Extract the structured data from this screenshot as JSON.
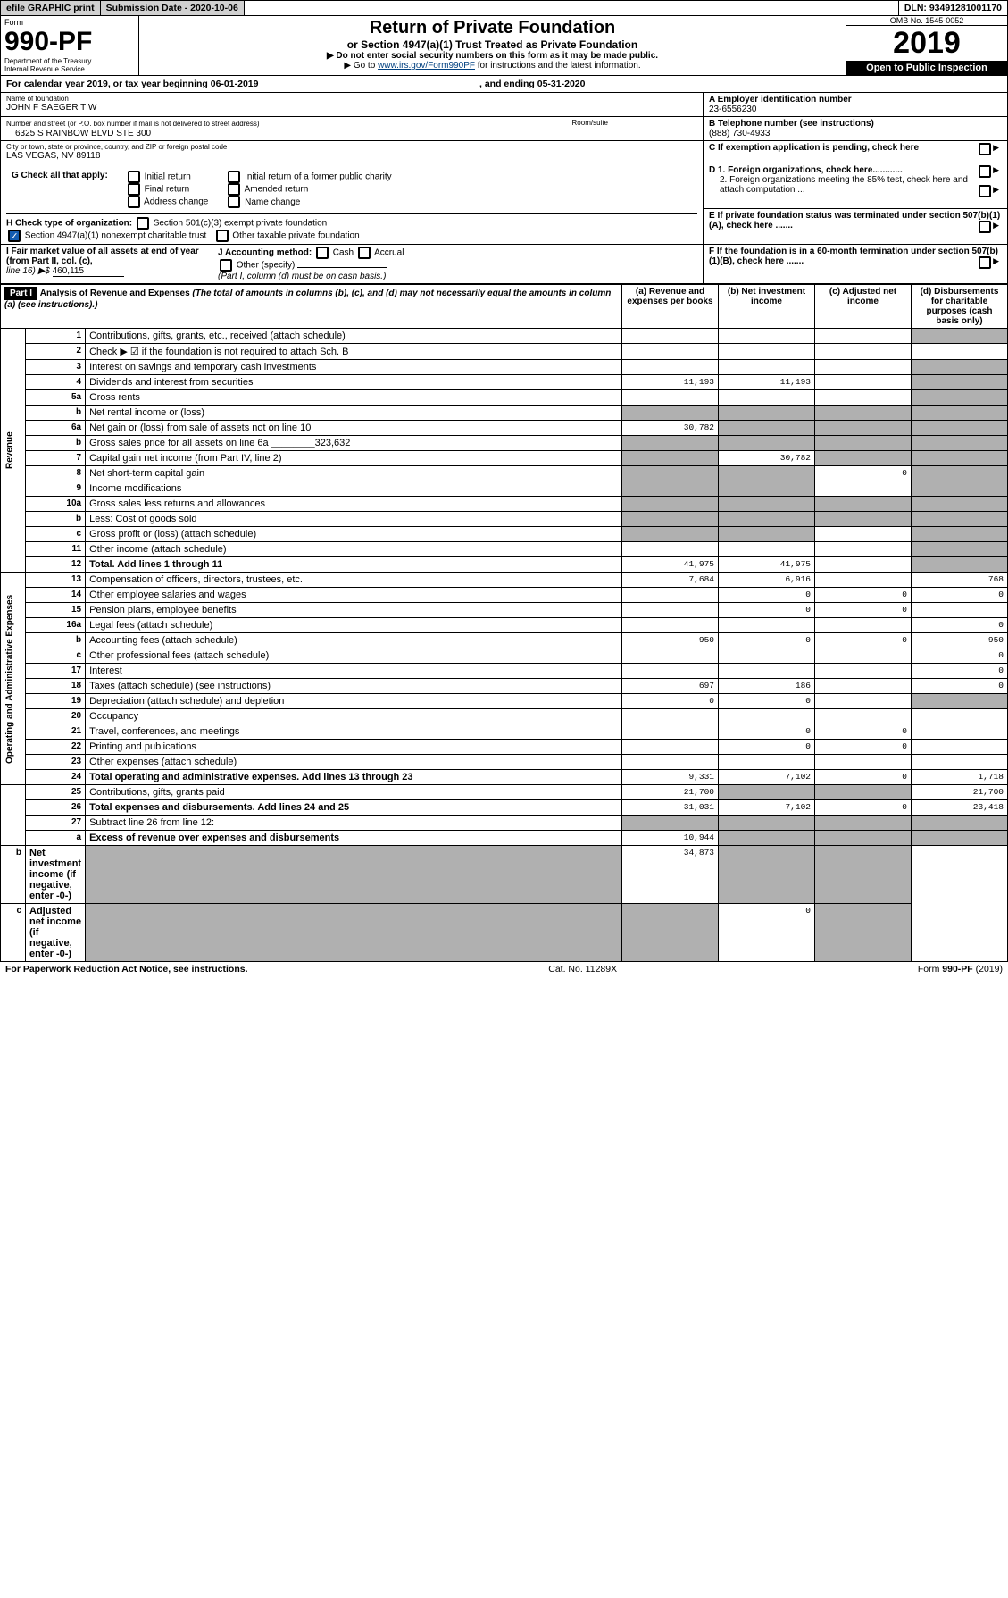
{
  "topbar": {
    "efile": "efile GRAPHIC print",
    "subdate_label": "Submission Date - 2020-10-06",
    "dln": "DLN: 93491281001170"
  },
  "header": {
    "form_word": "Form",
    "form_no": "990-PF",
    "dept": "Department of the Treasury\nInternal Revenue Service",
    "title": "Return of Private Foundation",
    "subtitle": "or Section 4947(a)(1) Trust Treated as Private Foundation",
    "warn": "▶ Do not enter social security numbers on this form as it may be made public.",
    "goto_pre": "▶ Go to ",
    "goto_link": "www.irs.gov/Form990PF",
    "goto_post": " for instructions and the latest information.",
    "omb": "OMB No. 1545-0052",
    "year": "2019",
    "open": "Open to Public Inspection"
  },
  "cy": {
    "text1": "For calendar year 2019, or tax year beginning 06-01-2019",
    "text2": ", and ending 05-31-2020"
  },
  "info": {
    "name_label": "Name of foundation",
    "name": "JOHN F SAEGER T W",
    "ein_label": "A Employer identification number",
    "ein": "23-6556230",
    "addr_label": "Number and street (or P.O. box number if mail is not delivered to street address)",
    "addr": "6325 S RAINBOW BLVD STE 300",
    "room_label": "Room/suite",
    "tel_label": "B Telephone number (see instructions)",
    "tel": "(888) 730-4933",
    "city_label": "City or town, state or province, country, and ZIP or foreign postal code",
    "city": "LAS VEGAS, NV  89118",
    "c": "C If exemption application is pending, check here",
    "d1": "D 1. Foreign organizations, check here............",
    "d2": "2. Foreign organizations meeting the 85% test, check here and attach computation ...",
    "e": "E  If private foundation status was terminated under section 507(b)(1)(A), check here .......",
    "f": "F  If the foundation is in a 60-month termination under section 507(b)(1)(B), check here .......",
    "g_label": "G Check all that apply:",
    "g_opts": [
      "Initial return",
      "Final return",
      "Address change",
      "Initial return of a former public charity",
      "Amended return",
      "Name change"
    ],
    "h_label": "H Check type of organization:",
    "h_opt1": "Section 501(c)(3) exempt private foundation",
    "h_opt2": "Section 4947(a)(1) nonexempt charitable trust",
    "h_opt3": "Other taxable private foundation",
    "i_label": "I Fair market value of all assets at end of year (from Part II, col. (c),",
    "i_line16": "line 16) ▶$",
    "i_value": "460,115",
    "j_label": "J Accounting method:",
    "j_cash": "Cash",
    "j_accrual": "Accrual",
    "j_other": "Other (specify)",
    "j_note": "(Part I, column (d) must be on cash basis.)"
  },
  "part1": {
    "label": "Part I",
    "title": "Analysis of Revenue and Expenses",
    "note": "(The total of amounts in columns (b), (c), and (d) may not necessarily equal the amounts in column (a) (see instructions).)",
    "col_a": "(a)    Revenue and expenses per books",
    "col_b": "(b)   Net investment income",
    "col_c": "(c)   Adjusted net income",
    "col_d": "(d)   Disbursements for charitable purposes (cash basis only)"
  },
  "revenue_label": "Revenue",
  "expense_label": "Operating and Administrative Expenses",
  "rows": [
    {
      "ln": "1",
      "desc": "Contributions, gifts, grants, etc., received (attach schedule)",
      "a": "",
      "b": "",
      "c": "",
      "d": "s"
    },
    {
      "ln": "2",
      "desc": "Check ▶ ☑ if the foundation is not required to attach Sch. B",
      "ad": "s",
      "bd": "s",
      "cd": "s",
      "dd": "s"
    },
    {
      "ln": "3",
      "desc": "Interest on savings and temporary cash investments",
      "a": "",
      "b": "",
      "c": "",
      "d": "s"
    },
    {
      "ln": "4",
      "desc": "Dividends and interest from securities",
      "a": "11,193",
      "b": "11,193",
      "c": "",
      "d": "s"
    },
    {
      "ln": "5a",
      "desc": "Gross rents",
      "a": "",
      "b": "",
      "c": "",
      "d": "s"
    },
    {
      "ln": "b",
      "desc": "Net rental income or (loss)",
      "a": "s",
      "b": "s",
      "c": "s",
      "d": "s"
    },
    {
      "ln": "6a",
      "desc": "Net gain or (loss) from sale of assets not on line 10",
      "a": "30,782",
      "b": "s",
      "c": "s",
      "d": "s"
    },
    {
      "ln": "b",
      "desc": "Gross sales price for all assets on line 6a ________323,632",
      "a": "s",
      "b": "s",
      "c": "s",
      "d": "s"
    },
    {
      "ln": "7",
      "desc": "Capital gain net income (from Part IV, line 2)",
      "a": "s",
      "b": "30,782",
      "c": "s",
      "d": "s"
    },
    {
      "ln": "8",
      "desc": "Net short-term capital gain",
      "a": "s",
      "b": "s",
      "c": "0",
      "d": "s"
    },
    {
      "ln": "9",
      "desc": "Income modifications",
      "a": "s",
      "b": "s",
      "c": "",
      "d": "s"
    },
    {
      "ln": "10a",
      "desc": "Gross sales less returns and allowances",
      "a": "s",
      "b": "s",
      "c": "s",
      "d": "s"
    },
    {
      "ln": "b",
      "desc": "Less: Cost of goods sold",
      "a": "s",
      "b": "s",
      "c": "s",
      "d": "s"
    },
    {
      "ln": "c",
      "desc": "Gross profit or (loss) (attach schedule)",
      "a": "s",
      "b": "s",
      "c": "",
      "d": "s"
    },
    {
      "ln": "11",
      "desc": "Other income (attach schedule)",
      "a": "",
      "b": "",
      "c": "",
      "d": "s"
    },
    {
      "ln": "12",
      "desc": "Total. Add lines 1 through 11",
      "bold": true,
      "a": "41,975",
      "b": "41,975",
      "c": "",
      "d": "s"
    },
    {
      "ln": "13",
      "desc": "Compensation of officers, directors, trustees, etc.",
      "a": "7,684",
      "b": "6,916",
      "c": "",
      "d": "768"
    },
    {
      "ln": "14",
      "desc": "Other employee salaries and wages",
      "a": "",
      "b": "0",
      "c": "0",
      "d": "0"
    },
    {
      "ln": "15",
      "desc": "Pension plans, employee benefits",
      "a": "",
      "b": "0",
      "c": "0",
      "d": ""
    },
    {
      "ln": "16a",
      "desc": "Legal fees (attach schedule)",
      "a": "",
      "b": "",
      "c": "",
      "d": "0"
    },
    {
      "ln": "b",
      "desc": "Accounting fees (attach schedule)",
      "a": "950",
      "b": "0",
      "c": "0",
      "d": "950"
    },
    {
      "ln": "c",
      "desc": "Other professional fees (attach schedule)",
      "a": "",
      "b": "",
      "c": "",
      "d": "0"
    },
    {
      "ln": "17",
      "desc": "Interest",
      "a": "",
      "b": "",
      "c": "",
      "d": "0"
    },
    {
      "ln": "18",
      "desc": "Taxes (attach schedule) (see instructions)",
      "a": "697",
      "b": "186",
      "c": "",
      "d": "0"
    },
    {
      "ln": "19",
      "desc": "Depreciation (attach schedule) and depletion",
      "a": "0",
      "b": "0",
      "c": "",
      "d": "s"
    },
    {
      "ln": "20",
      "desc": "Occupancy",
      "a": "",
      "b": "",
      "c": "",
      "d": ""
    },
    {
      "ln": "21",
      "desc": "Travel, conferences, and meetings",
      "a": "",
      "b": "0",
      "c": "0",
      "d": ""
    },
    {
      "ln": "22",
      "desc": "Printing and publications",
      "a": "",
      "b": "0",
      "c": "0",
      "d": ""
    },
    {
      "ln": "23",
      "desc": "Other expenses (attach schedule)",
      "a": "",
      "b": "",
      "c": "",
      "d": ""
    },
    {
      "ln": "24",
      "desc": "Total operating and administrative expenses. Add lines 13 through 23",
      "bold": true,
      "a": "9,331",
      "b": "7,102",
      "c": "0",
      "d": "1,718"
    },
    {
      "ln": "25",
      "desc": "Contributions, gifts, grants paid",
      "a": "21,700",
      "b": "s",
      "c": "s",
      "d": "21,700"
    },
    {
      "ln": "26",
      "desc": "Total expenses and disbursements. Add lines 24 and 25",
      "bold": true,
      "a": "31,031",
      "b": "7,102",
      "c": "0",
      "d": "23,418"
    },
    {
      "ln": "27",
      "desc": "Subtract line 26 from line 12:",
      "a": "s",
      "b": "s",
      "c": "s",
      "d": "s"
    },
    {
      "ln": "a",
      "desc": "Excess of revenue over expenses and disbursements",
      "bold": true,
      "a": "10,944",
      "b": "s",
      "c": "s",
      "d": "s"
    },
    {
      "ln": "b",
      "desc": "Net investment income (if negative, enter -0-)",
      "bold": true,
      "a": "s",
      "b": "34,873",
      "c": "s",
      "d": "s"
    },
    {
      "ln": "c",
      "desc": "Adjusted net income (if negative, enter -0-)",
      "bold": true,
      "a": "s",
      "b": "s",
      "c": "0",
      "d": "s"
    }
  ],
  "footer": {
    "left": "For Paperwork Reduction Act Notice, see instructions.",
    "mid": "Cat. No. 11289X",
    "right": "Form 990-PF (2019)"
  }
}
